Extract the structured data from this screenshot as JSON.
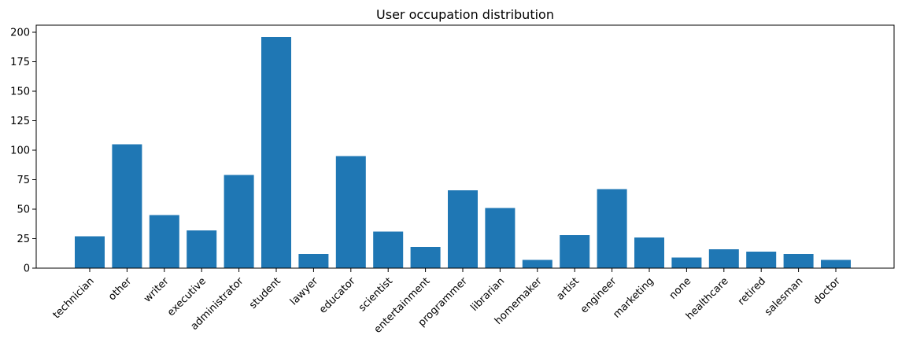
{
  "chart_data": {
    "type": "bar",
    "title": "User occupation distribution",
    "xlabel": "",
    "ylabel": "",
    "categories": [
      "technician",
      "other",
      "writer",
      "executive",
      "administrator",
      "student",
      "lawyer",
      "educator",
      "scientist",
      "entertainment",
      "programmer",
      "librarian",
      "homemaker",
      "artist",
      "engineer",
      "marketing",
      "none",
      "healthcare",
      "retired",
      "salesman",
      "doctor"
    ],
    "values": [
      27,
      105,
      45,
      32,
      79,
      196,
      12,
      95,
      31,
      18,
      66,
      51,
      7,
      28,
      67,
      26,
      9,
      16,
      14,
      12,
      7
    ],
    "ylim": [
      0,
      206
    ],
    "yticks": [
      0,
      25,
      50,
      75,
      100,
      125,
      150,
      175,
      200
    ],
    "xtick_rotation": 45,
    "grid": false,
    "legend": "none",
    "bar_color": "#1f77b4"
  }
}
